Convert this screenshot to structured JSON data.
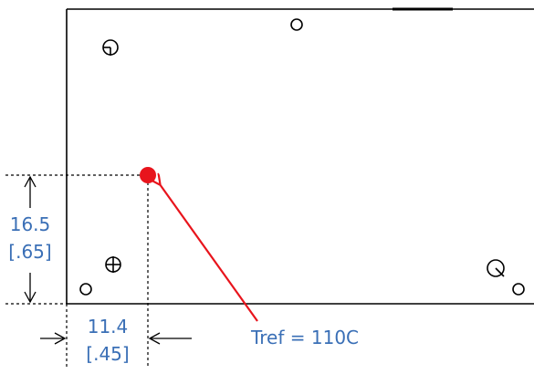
{
  "vertical_dimension": {
    "metric": "16.5",
    "imperial": "[.65]"
  },
  "horizontal_dimension": {
    "metric": "11.4",
    "imperial": "[.45]"
  },
  "reference_point": {
    "label": "Tref = 110C",
    "marker_color": "#e8141c",
    "arrow_color": "#e8141c"
  },
  "colors": {
    "dimension_text": "#3a6fb6",
    "outline": "#000000"
  }
}
